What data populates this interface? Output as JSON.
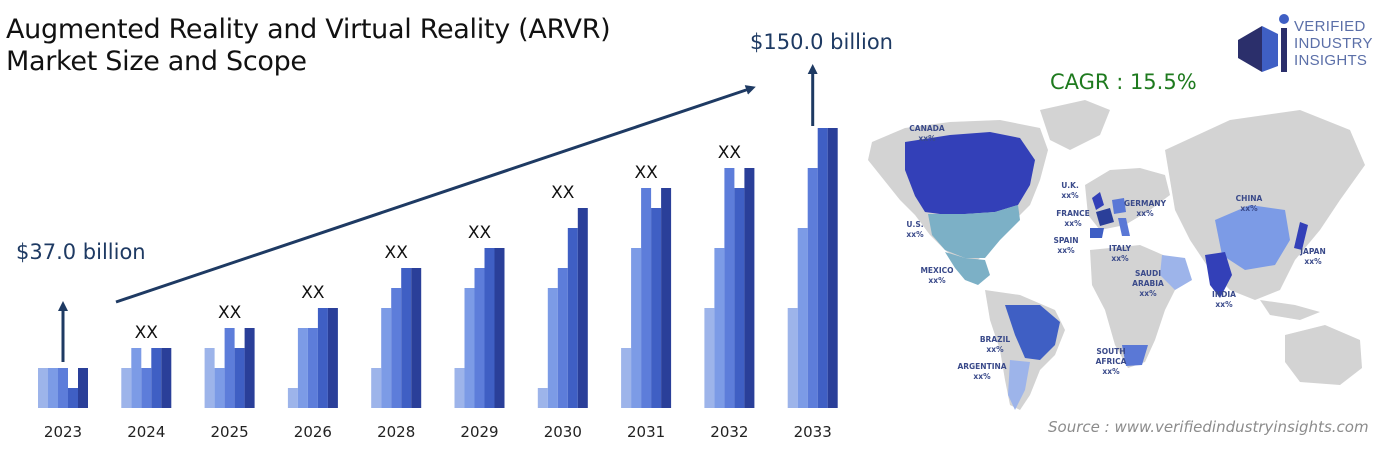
{
  "header": {
    "title_line1": "Augmented Reality and Virtual Reality (ARVR)",
    "title_line2": "Market Size and Scope"
  },
  "logo": {
    "line1": "VERIFIED",
    "line2": "INDUSTRY",
    "line3": "INSIGHTS"
  },
  "cagr": "CAGR : 15.5%",
  "source": "Source : www.verifiedindustryinsights.com",
  "colors": {
    "bar_shades": [
      "#9db4ea",
      "#7c9be6",
      "#5d7dda",
      "#3f5fc4",
      "#2a3f99"
    ],
    "arrow": "#1e3a63",
    "map_land": "#d3d3d3",
    "map_highlight_dark": "#3340b8",
    "map_highlight_mid": "#5a78d6",
    "map_highlight_teal": "#7cb0c6"
  },
  "chart_data": {
    "type": "bar",
    "categories": [
      "2023",
      "2024",
      "2025",
      "2026",
      "2028",
      "2029",
      "2030",
      "2031",
      "2032",
      "2033"
    ],
    "series": [
      {
        "values": [
          2,
          2,
          3,
          1,
          2,
          2,
          1,
          3,
          5,
          5
        ]
      },
      {
        "values": [
          2,
          3,
          2,
          4,
          5,
          6,
          6,
          8,
          8,
          9
        ]
      },
      {
        "values": [
          2,
          2,
          4,
          4,
          6,
          7,
          7,
          11,
          12,
          12
        ]
      },
      {
        "values": [
          1,
          3,
          3,
          5,
          7,
          8,
          9,
          10,
          11,
          14
        ]
      },
      {
        "values": [
          2,
          3,
          4,
          5,
          7,
          8,
          10,
          11,
          12,
          14
        ]
      }
    ],
    "data_labels": [
      "",
      "XX",
      "XX",
      "XX",
      "XX",
      "XX",
      "XX",
      "XX",
      "XX",
      ""
    ],
    "start_annotation": "$37.0 billion",
    "end_annotation": "$150.0 billion"
  },
  "map": {
    "labels": [
      {
        "name": "CANADA",
        "value": "xx%"
      },
      {
        "name": "U.K.",
        "value": "xx%"
      },
      {
        "name": "GERMANY",
        "value": "xx%"
      },
      {
        "name": "FRANCE",
        "value": "xx%"
      },
      {
        "name": "CHINA",
        "value": "xx%"
      },
      {
        "name": "U.S.",
        "value": "xx%"
      },
      {
        "name": "SPAIN",
        "value": "xx%"
      },
      {
        "name": "ITALY",
        "value": "xx%"
      },
      {
        "name": "JAPAN",
        "value": "xx%"
      },
      {
        "name": "MEXICO",
        "value": "xx%"
      },
      {
        "name": "SAUDI ARABIA",
        "value": "xx%"
      },
      {
        "name": "INDIA",
        "value": "xx%"
      },
      {
        "name": "BRAZIL",
        "value": "xx%"
      },
      {
        "name": "SOUTH AFRICA",
        "value": "xx%"
      },
      {
        "name": "ARGENTINA",
        "value": "xx%"
      }
    ]
  }
}
